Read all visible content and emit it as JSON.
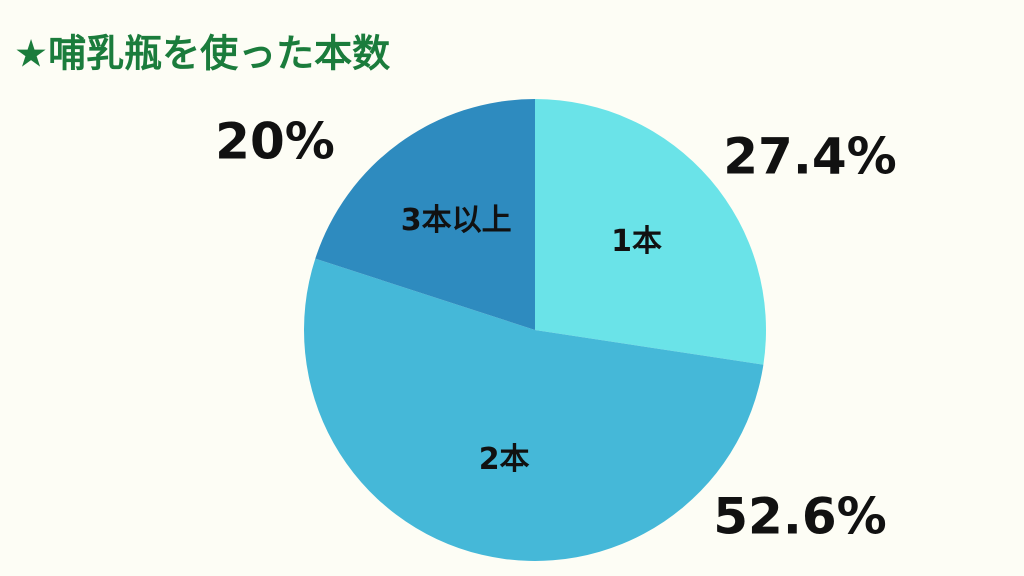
{
  "chart_data": {
    "type": "pie",
    "title": "★哺乳瓶を使った本数",
    "categories": [
      "1本",
      "2本",
      "3本以上"
    ],
    "values": [
      27.4,
      52.6,
      20
    ],
    "value_labels": [
      "27.4%",
      "52.6%",
      "20%"
    ],
    "colors": [
      "#6ae3e8",
      "#45b8d8",
      "#2e8bbf"
    ]
  }
}
